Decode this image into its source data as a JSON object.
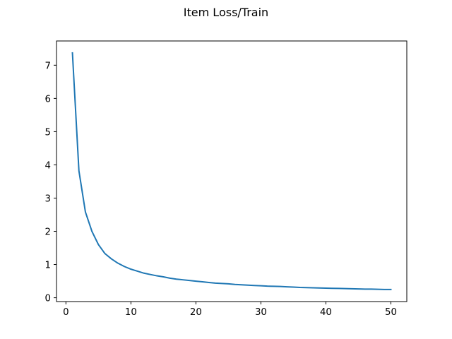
{
  "chart_data": {
    "type": "line",
    "title": "Item Loss/Train",
    "xlabel": "",
    "ylabel": "",
    "xlim": [
      -1.45,
      52.45
    ],
    "ylim": [
      -0.115,
      7.73
    ],
    "xticks": [
      0,
      10,
      20,
      30,
      40,
      50
    ],
    "yticks": [
      0,
      1,
      2,
      3,
      4,
      5,
      6,
      7
    ],
    "grid": false,
    "legend": "none",
    "series": [
      {
        "color": "#1f77b4",
        "x": [
          1,
          2,
          3,
          4,
          5,
          6,
          7,
          8,
          9,
          10,
          11,
          12,
          13,
          14,
          15,
          16,
          17,
          18,
          19,
          20,
          21,
          22,
          23,
          24,
          25,
          26,
          27,
          28,
          29,
          30,
          31,
          32,
          33,
          34,
          35,
          36,
          37,
          38,
          39,
          40,
          41,
          42,
          43,
          44,
          45,
          46,
          47,
          48,
          49,
          50
        ],
        "y": [
          7.37,
          3.82,
          2.58,
          2.0,
          1.6,
          1.33,
          1.17,
          1.04,
          0.94,
          0.86,
          0.8,
          0.74,
          0.7,
          0.66,
          0.63,
          0.59,
          0.56,
          0.54,
          0.52,
          0.5,
          0.48,
          0.46,
          0.44,
          0.43,
          0.42,
          0.4,
          0.39,
          0.38,
          0.37,
          0.36,
          0.35,
          0.345,
          0.34,
          0.33,
          0.32,
          0.31,
          0.305,
          0.3,
          0.295,
          0.29,
          0.285,
          0.28,
          0.275,
          0.27,
          0.265,
          0.26,
          0.26,
          0.255,
          0.25,
          0.25
        ]
      }
    ]
  }
}
